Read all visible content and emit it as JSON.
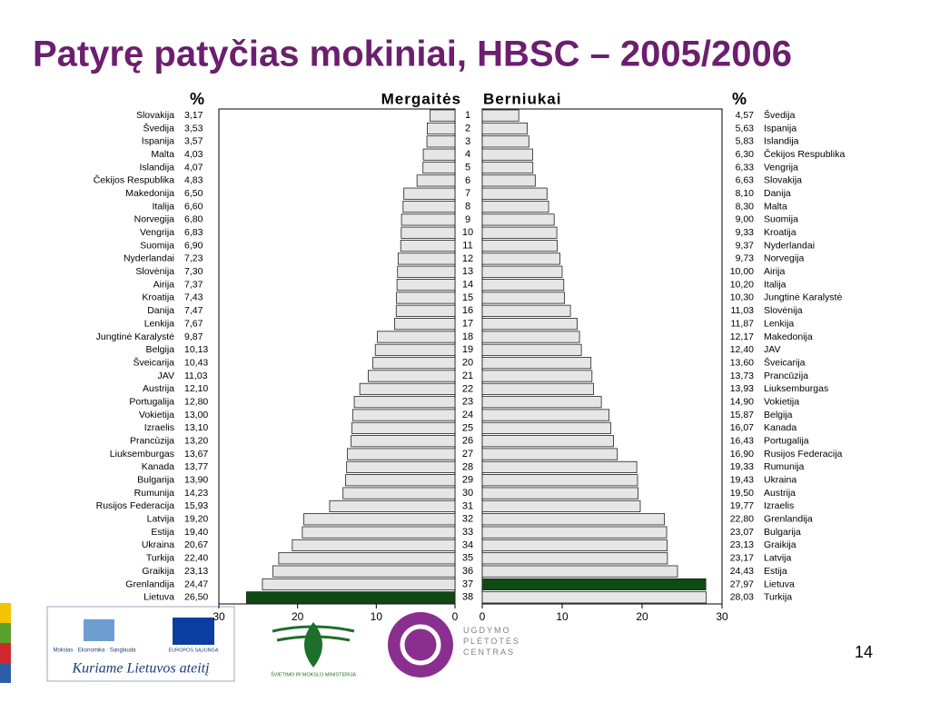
{
  "title": "Patyrę patyčias mokiniai, HBSC – 2005/2006",
  "page_number": "14",
  "ranks": [
    1,
    2,
    3,
    4,
    5,
    6,
    7,
    8,
    9,
    10,
    11,
    12,
    13,
    14,
    15,
    16,
    17,
    18,
    19,
    20,
    21,
    22,
    23,
    24,
    25,
    26,
    27,
    28,
    29,
    30,
    31,
    32,
    33,
    34,
    35,
    36,
    37,
    38
  ],
  "chart_data": [
    {
      "type": "bar",
      "subtitle": "Mergaitės",
      "unit": "%",
      "x_reversed": true,
      "xlim": [
        0,
        30
      ],
      "xticks": [
        0,
        10,
        20,
        30
      ],
      "categories": [
        "Slovakija",
        "Švedija",
        "Ispanija",
        "Malta",
        "Islandija",
        "Čekijos Respublika",
        "Makedonija",
        "Italija",
        "Norvegija",
        "Vengrija",
        "Suomija",
        "Nyderlandai",
        "Slovėnija",
        "Airija",
        "Kroatija",
        "Danija",
        "Lenkija",
        "Jungtinė Karalystė",
        "Belgija",
        "Šveicarija",
        "JAV",
        "Austrija",
        "Portugalija",
        "Vokietija",
        "Izraelis",
        "Prancūzija",
        "Liuksemburgas",
        "Kanada",
        "Bulgarija",
        "Rumunija",
        "Rusijos Federacija",
        "Latvija",
        "Estija",
        "Ukraina",
        "Turkija",
        "Graikija",
        "Grenlandija",
        "Lietuva"
      ],
      "values": [
        3.17,
        3.53,
        3.57,
        4.03,
        4.07,
        4.83,
        6.5,
        6.6,
        6.8,
        6.83,
        6.9,
        7.23,
        7.3,
        7.37,
        7.43,
        7.47,
        7.67,
        9.87,
        10.13,
        10.43,
        11.03,
        12.1,
        12.8,
        13.0,
        13.1,
        13.2,
        13.67,
        13.77,
        13.9,
        14.23,
        15.93,
        19.2,
        19.4,
        20.67,
        22.4,
        23.13,
        24.47,
        26.5
      ],
      "value_labels": [
        "3,17",
        "3,53",
        "3,57",
        "4,03",
        "4,07",
        "4,83",
        "6,50",
        "6,60",
        "6,80",
        "6,83",
        "6,90",
        "7,23",
        "7,30",
        "7,37",
        "7,43",
        "7,47",
        "7,67",
        "9,87",
        "10,13",
        "10,43",
        "11,03",
        "12,10",
        "12,80",
        "13,00",
        "13,10",
        "13,20",
        "13,67",
        "13,77",
        "13,90",
        "14,23",
        "15,93",
        "19,20",
        "19,40",
        "20,67",
        "22,40",
        "23,13",
        "24,47",
        "26,50"
      ],
      "colors": [
        "#e6e6e6",
        "#e6e6e6",
        "#e6e6e6",
        "#e6e6e6",
        "#e6e6e6",
        "#e6e6e6",
        "#e6e6e6",
        "#e6e6e6",
        "#e6e6e6",
        "#e6e6e6",
        "#e6e6e6",
        "#e6e6e6",
        "#e6e6e6",
        "#e6e6e6",
        "#e6e6e6",
        "#e6e6e6",
        "#e6e6e6",
        "#e6e6e6",
        "#e6e6e6",
        "#e6e6e6",
        "#e6e6e6",
        "#e6e6e6",
        "#e6e6e6",
        "#e6e6e6",
        "#e6e6e6",
        "#e6e6e6",
        "#e6e6e6",
        "#e6e6e6",
        "#e6e6e6",
        "#e6e6e6",
        "#e6e6e6",
        "#e6e6e6",
        "#e6e6e6",
        "#e6e6e6",
        "#e6e6e6",
        "#e6e6e6",
        "#e6e6e6",
        "#0e4a14"
      ]
    },
    {
      "type": "bar",
      "subtitle": "Berniukai",
      "unit": "%",
      "x_reversed": false,
      "xlim": [
        0,
        30
      ],
      "xticks": [
        0,
        10,
        20,
        30
      ],
      "categories": [
        "Švedija",
        "Ispanija",
        "Islandija",
        "Čekijos Respublika",
        "Vengrija",
        "Slovakija",
        "Danija",
        "Malta",
        "Suomija",
        "Kroatija",
        "Nyderlandai",
        "Norvegija",
        "Airija",
        "Italija",
        "Jungtinė Karalystė",
        "Slovėnija",
        "Lenkija",
        "Makedonija",
        "JAV",
        "Šveicarija",
        "Prancūzija",
        "Liuksemburgas",
        "Vokietija",
        "Belgija",
        "Kanada",
        "Portugalija",
        "Rusijos Federacija",
        "Rumunija",
        "Ukraina",
        "Austrija",
        "Izraelis",
        "Grenlandija",
        "Bulgarija",
        "Graikija",
        "Latvija",
        "Estija",
        "Lietuva",
        "Turkija"
      ],
      "values": [
        4.57,
        5.63,
        5.83,
        6.3,
        6.33,
        6.63,
        8.1,
        8.3,
        9.0,
        9.33,
        9.37,
        9.73,
        10.0,
        10.2,
        10.3,
        11.03,
        11.87,
        12.17,
        12.4,
        13.6,
        13.73,
        13.93,
        14.9,
        15.87,
        16.07,
        16.43,
        16.9,
        19.33,
        19.43,
        19.5,
        19.77,
        22.8,
        23.07,
        23.13,
        23.17,
        24.43,
        27.97,
        28.03
      ],
      "value_labels": [
        "4,57",
        "5,63",
        "5,83",
        "6,30",
        "6,33",
        "6,63",
        "8,10",
        "8,30",
        "9,00",
        "9,33",
        "9,37",
        "9,73",
        "10,00",
        "10,20",
        "10,30",
        "11,03",
        "11,87",
        "12,17",
        "12,40",
        "13,60",
        "13,73",
        "13,93",
        "14,90",
        "15,87",
        "16,07",
        "16,43",
        "16,90",
        "19,33",
        "19,43",
        "19,50",
        "19,77",
        "22,80",
        "23,07",
        "23,13",
        "23,17",
        "24,43",
        "27,97",
        "28,03"
      ],
      "colors": [
        "#e6e6e6",
        "#e6e6e6",
        "#e6e6e6",
        "#e6e6e6",
        "#e6e6e6",
        "#e6e6e6",
        "#e6e6e6",
        "#e6e6e6",
        "#e6e6e6",
        "#e6e6e6",
        "#e6e6e6",
        "#e6e6e6",
        "#e6e6e6",
        "#e6e6e6",
        "#e6e6e6",
        "#e6e6e6",
        "#e6e6e6",
        "#e6e6e6",
        "#e6e6e6",
        "#e6e6e6",
        "#e6e6e6",
        "#e6e6e6",
        "#e6e6e6",
        "#e6e6e6",
        "#e6e6e6",
        "#e6e6e6",
        "#e6e6e6",
        "#e6e6e6",
        "#e6e6e6",
        "#e6e6e6",
        "#e6e6e6",
        "#e6e6e6",
        "#e6e6e6",
        "#e6e6e6",
        "#e6e6e6",
        "#e6e6e6",
        "#0e4a14",
        "#e6e6e6"
      ]
    }
  ],
  "footer_logos": {
    "esf_top": "Mokslas · Ekonomika · Sanglauda",
    "eu": "EUROPOS SĄJUNGA",
    "esf_slogan": "Kuriame Lietuvos ateitį",
    "ministry": "ŠVIETIMO IR MOKSLO MINISTERIJA",
    "upc": "UGDYMO PLĖTOTĖS CENTRAS"
  }
}
